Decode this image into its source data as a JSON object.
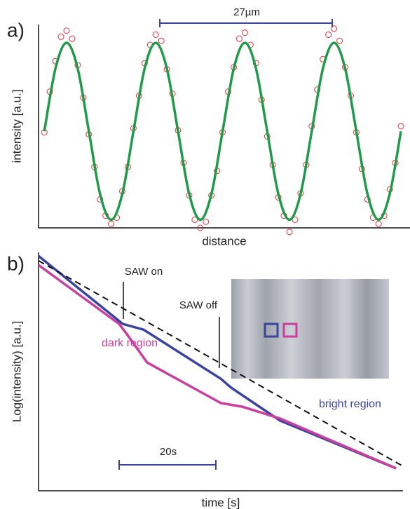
{
  "chart_data": [
    {
      "type": "line",
      "panel_label": "a)",
      "x_label": "distance",
      "y_label": "intensity [a.u.]",
      "annotations": [
        "27µm"
      ],
      "xlim": [
        0,
        100
      ],
      "ylim": [
        0,
        1
      ],
      "series": [
        {
          "type": "scatter",
          "color": "#e8323c",
          "x": [
            1.55,
            3.05,
            4.55,
            6.05,
            7.55,
            9.05,
            10.55,
            12.05,
            13.55,
            15.05,
            16.55,
            18.05,
            19.55,
            21.05,
            22.55,
            24.05,
            25.55,
            27.05,
            28.55,
            30.05,
            31.55,
            33.05,
            34.55,
            36.05,
            37.55,
            39.05,
            40.55,
            42.05,
            43.55,
            45.05,
            46.55,
            48.05,
            49.55,
            51.05,
            52.55,
            54.05,
            55.55,
            57.05,
            58.55,
            60.05,
            61.55,
            63.05,
            64.55,
            66.05,
            67.55,
            69.05,
            70.55,
            72.05,
            73.55,
            75.05,
            76.55,
            78.05,
            79.55,
            81.05,
            82.55,
            84.05,
            85.55,
            87.05,
            88.55,
            90.05,
            91.55,
            93.05,
            94.55,
            96.05,
            97.55
          ],
          "values": [
            0.47,
            0.67,
            0.82,
            0.94,
            0.97,
            0.93,
            0.8,
            0.64,
            0.46,
            0.3,
            0.14,
            0.06,
            0.02,
            0.05,
            0.18,
            0.3,
            0.49,
            0.65,
            0.81,
            0.9,
            0.95,
            0.92,
            0.78,
            0.66,
            0.48,
            0.32,
            0.16,
            0.04,
            0.0,
            0.03,
            0.16,
            0.28,
            0.47,
            0.67,
            0.79,
            0.93,
            0.96,
            0.9,
            0.81,
            0.63,
            0.45,
            0.31,
            0.15,
            0.06,
            -0.02,
            0.04,
            0.17,
            0.31,
            0.5,
            0.68,
            0.83,
            0.95,
            0.98,
            0.92,
            0.79,
            0.65,
            0.47,
            0.29,
            0.14,
            0.05,
            0.02,
            0.06,
            0.19,
            0.32,
            0.5
          ]
        },
        {
          "type": "line",
          "color": "#1f9a48",
          "smooth": true,
          "x": [
            1.55,
            4.55,
            7.55,
            10.55,
            13.55,
            16.55,
            19.55,
            22.55,
            25.55,
            28.55,
            31.55,
            34.55,
            37.55,
            40.55,
            43.55,
            46.55,
            49.55,
            52.55,
            55.55,
            58.55,
            61.55,
            64.55,
            67.55,
            70.55,
            73.55,
            76.55,
            79.55,
            82.55,
            85.55,
            88.55,
            91.55,
            94.55,
            97.55
          ],
          "values": [
            0.475,
            0.783,
            0.91,
            0.783,
            0.475,
            0.167,
            0.04,
            0.167,
            0.475,
            0.783,
            0.91,
            0.783,
            0.475,
            0.167,
            0.04,
            0.167,
            0.475,
            0.783,
            0.91,
            0.783,
            0.475,
            0.167,
            0.04,
            0.167,
            0.475,
            0.783,
            0.91,
            0.783,
            0.475,
            0.167,
            0.04,
            0.167,
            0.475
          ]
        }
      ]
    },
    {
      "type": "line",
      "panel_label": "b)",
      "x_label": "time [s]",
      "y_label": "Log(intensity) [a.u.]",
      "annotations": [
        "SAW on",
        "SAW off",
        "20s"
      ],
      "xlim": [
        0,
        100
      ],
      "ylim": [
        0,
        1
      ],
      "series": [
        {
          "type": "line",
          "name": "bright region",
          "color": "#3a44a0",
          "x": [
            0,
            23.1,
            28.8,
            50,
            52.9,
            66.3,
            98.1
          ],
          "values": [
            0.985,
            0.7,
            0.676,
            0.47,
            0.432,
            0.294,
            0.094
          ]
        },
        {
          "type": "line",
          "name": "dark region",
          "color": "#c93e9e",
          "x": [
            0,
            22.1,
            24,
            29.8,
            50,
            55.8,
            66.3,
            98.1
          ],
          "values": [
            0.947,
            0.7,
            0.662,
            0.538,
            0.368,
            0.353,
            0.303,
            0.094
          ]
        },
        {
          "type": "line",
          "color": "#111111",
          "dashed": true,
          "x": [
            0,
            100
          ],
          "values": [
            0.965,
            0.103
          ]
        }
      ]
    }
  ]
}
